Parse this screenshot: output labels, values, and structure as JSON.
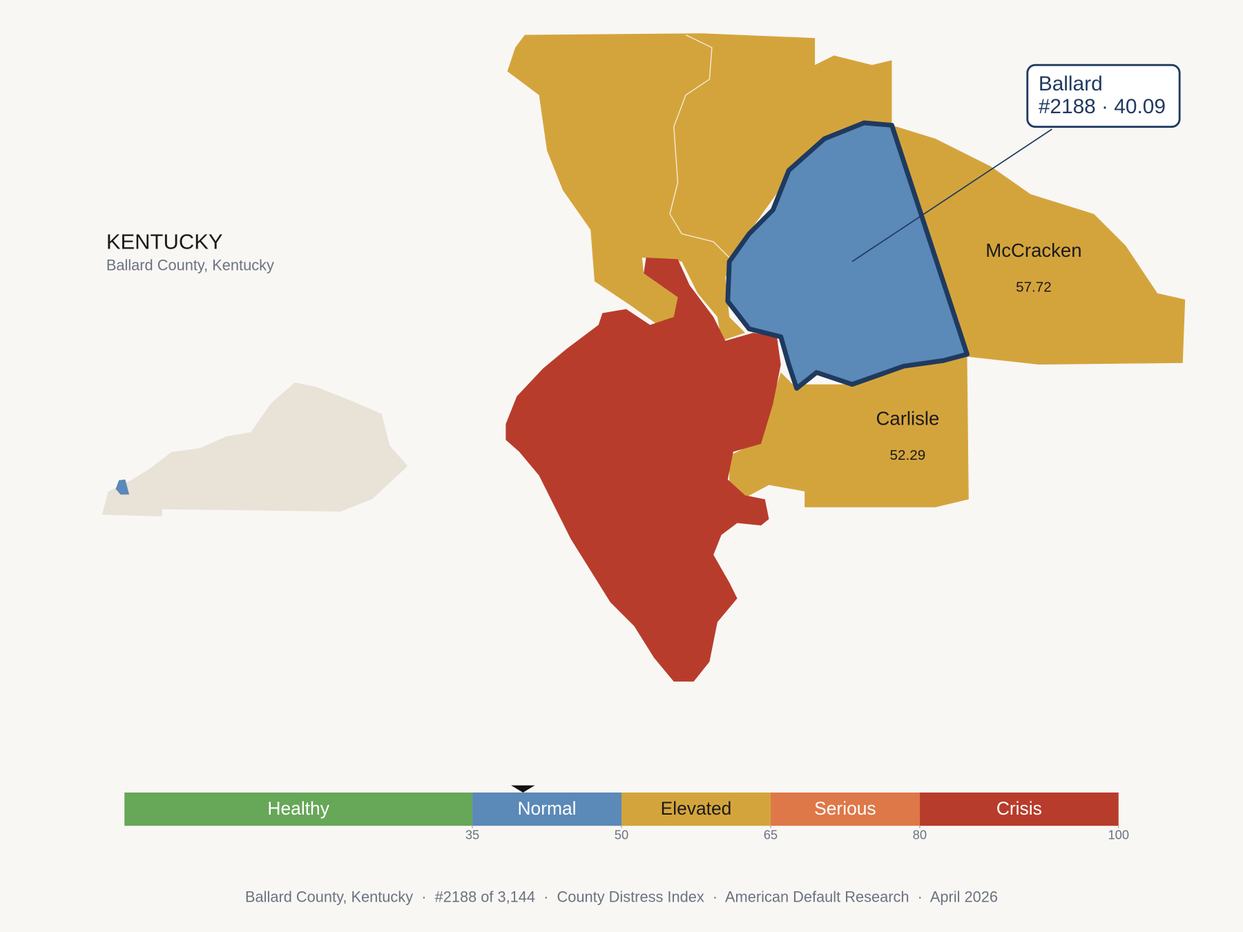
{
  "title": "KENTUCKY",
  "subtitle": "Ballard County, Kentucky",
  "selected": {
    "name": "Ballard",
    "label": "#2188 · 40.09",
    "score": 40.09
  },
  "counties": [
    {
      "name": "McCracken",
      "value": 57.72
    },
    {
      "name": "Carlisle",
      "value": 52.29
    }
  ],
  "scale": {
    "xlim": [
      0,
      100
    ],
    "ticks": [
      35,
      50,
      65,
      80,
      100
    ],
    "bands": [
      {
        "name": "Healthy",
        "color": "#67a758"
      },
      {
        "name": "Normal",
        "color": "#5b89b8"
      },
      {
        "name": "Elevated",
        "color": "#d4a43c"
      },
      {
        "name": "Serious",
        "color": "#de7848"
      },
      {
        "name": "Crisis",
        "color": "#b83c2c"
      }
    ]
  },
  "footer": "Ballard County, Kentucky  ·  #2188 of 3,144  ·  County Distress Index  ·  American Default Research  ·  April 2026"
}
